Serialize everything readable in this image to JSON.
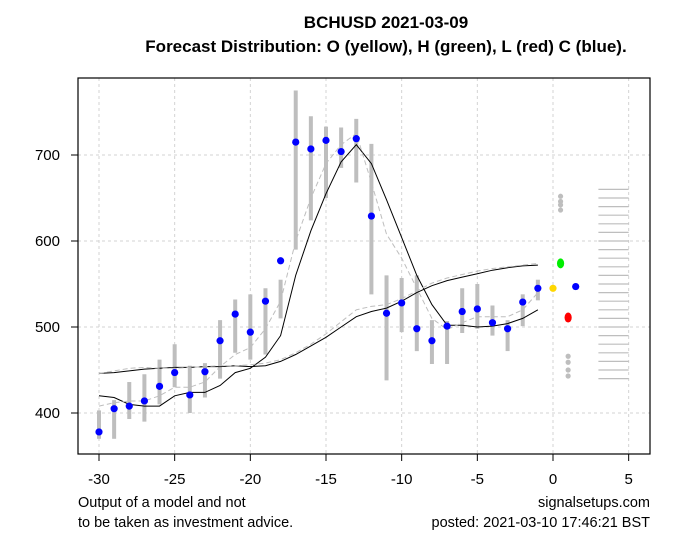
{
  "chart_data": {
    "type": "scatter",
    "title": "BCHUSD 2021-03-09",
    "subtitle": "Forecast Distribution: O (yellow), H (green), L (red) C (blue).",
    "xlabel": "",
    "ylabel": "",
    "xlim": [
      -31.5,
      6.5
    ],
    "ylim": [
      355,
      790
    ],
    "x_ticks": [
      -30,
      -25,
      -20,
      -15,
      -10,
      -5,
      0,
      5
    ],
    "x_tick_labels": [
      "-30",
      "-25",
      "-20",
      "-15",
      "-10",
      "-5",
      "0",
      "5"
    ],
    "y_ticks": [
      400,
      500,
      600,
      700
    ],
    "y_tick_labels": [
      "400",
      "500",
      "600",
      "700"
    ],
    "grid": true,
    "colors": {
      "close": "#0000ff",
      "range_bar": "#bebebe",
      "open_forecast": "#ffd700",
      "high_forecast": "#00ee00",
      "low_forecast": "#ff0000",
      "close_forecast": "#0000ff",
      "gray_marks": "#bebebe",
      "grid": "#d3d3d3",
      "line": "#000000",
      "dashed_line": "#bebebe"
    },
    "series": [
      {
        "name": "Close",
        "x": [
          -30,
          -29,
          -28,
          -27,
          -26,
          -25,
          -24,
          -23,
          -22,
          -21,
          -20,
          -19,
          -18,
          -17,
          -16,
          -15,
          -14,
          -13,
          -12,
          -11,
          -10,
          -9,
          -8,
          -7,
          -6,
          -5,
          -4,
          -3,
          -2,
          -1
        ],
        "values": [
          378,
          405,
          408,
          414,
          431,
          447,
          421,
          448,
          484,
          515,
          494,
          530,
          577,
          715,
          707,
          717,
          704,
          719,
          629,
          516,
          528,
          498,
          484,
          501,
          518,
          521,
          505,
          498,
          529,
          545
        ]
      },
      {
        "name": "Range bars (low-high)",
        "low": [
          370,
          370,
          393,
          390,
          410,
          430,
          400,
          418,
          440,
          470,
          462,
          468,
          510,
          590,
          624,
          650,
          685,
          668,
          538,
          438,
          494,
          472,
          457,
          457,
          493,
          498,
          490,
          472,
          501,
          531
        ],
        "high": [
          403,
          415,
          436,
          445,
          462,
          480,
          455,
          458,
          508,
          532,
          538,
          545,
          555,
          775,
          745,
          733,
          732,
          742,
          713,
          560,
          557,
          560,
          508,
          507,
          545,
          550,
          525,
          508,
          538,
          555
        ]
      },
      {
        "name": "Moving average (fast)",
        "x": [
          -30,
          -29,
          -28,
          -27,
          -26,
          -25,
          -24,
          -23,
          -22,
          -21,
          -20,
          -19,
          -18,
          -17,
          -16,
          -15,
          -14,
          -13,
          -12,
          -11,
          -10,
          -9,
          -8,
          -7,
          -6,
          -5,
          -4,
          -3,
          -2,
          -1
        ],
        "values": [
          420,
          418,
          410,
          408,
          408,
          420,
          424,
          424,
          432,
          447,
          452,
          465,
          490,
          560,
          612,
          655,
          692,
          712,
          690,
          648,
          604,
          560,
          526,
          502,
          502,
          500,
          501,
          504,
          510,
          520
        ]
      },
      {
        "name": "Moving average (fast, dashed)",
        "x": [
          -30,
          -29,
          -28,
          -27,
          -26,
          -25,
          -24,
          -23,
          -22,
          -21,
          -20,
          -19,
          -18,
          -17,
          -16,
          -15,
          -14,
          -13,
          -12,
          -11,
          -10,
          -9,
          -8,
          -7,
          -6,
          -5,
          -4,
          -3,
          -2,
          -1
        ],
        "values": [
          408,
          412,
          414,
          414,
          420,
          430,
          430,
          436,
          454,
          468,
          476,
          498,
          530,
          600,
          650,
          690,
          712,
          725,
          668,
          608,
          580,
          545,
          510,
          497,
          505,
          512,
          512,
          512,
          520,
          540
        ]
      },
      {
        "name": "Moving average (slow)",
        "x": [
          -30,
          -29,
          -28,
          -27,
          -26,
          -25,
          -24,
          -23,
          -22,
          -21,
          -20,
          -19,
          -18,
          -17,
          -16,
          -15,
          -14,
          -13,
          -12,
          -11,
          -10,
          -9,
          -8,
          -7,
          -6,
          -5,
          -4,
          -3,
          -2,
          -1
        ],
        "values": [
          446,
          447,
          449,
          451,
          452,
          453,
          453,
          454,
          454,
          455,
          454,
          455,
          460,
          468,
          478,
          488,
          500,
          512,
          518,
          522,
          530,
          540,
          548,
          554,
          558,
          562,
          566,
          569,
          571,
          572
        ]
      },
      {
        "name": "Moving average (slow, dashed)",
        "x": [
          -30,
          -29,
          -28,
          -27,
          -26,
          -25,
          -24,
          -23,
          -22,
          -21,
          -20,
          -19,
          -18,
          -17,
          -16,
          -15,
          -14,
          -13,
          -12,
          -11,
          -10,
          -9,
          -8,
          -7,
          -6,
          -5,
          -4,
          -3,
          -2,
          -1
        ],
        "values": [
          446,
          449,
          452,
          453,
          452,
          452,
          453,
          454,
          455,
          455,
          456,
          458,
          462,
          470,
          480,
          492,
          506,
          520,
          524,
          526,
          533,
          542,
          551,
          557,
          561,
          565,
          568,
          570,
          572,
          574
        ]
      }
    ],
    "forecast": {
      "open": {
        "x": 0.0,
        "value": 545
      },
      "high": {
        "x": 0.5,
        "value": 574
      },
      "low": {
        "x": 1.0,
        "value": 511
      },
      "close": {
        "x": 1.5,
        "value": 547
      },
      "high_upper_marks": {
        "x": 0.5,
        "values": [
          636,
          642,
          646,
          652
        ]
      },
      "low_lower_marks": {
        "x": 1.0,
        "values": [
          443,
          450,
          459,
          466
        ]
      },
      "distribution_levels": {
        "x_from": 3.0,
        "x_to": 5.0,
        "values": [
          440,
          450,
          460,
          470,
          480,
          490,
          500,
          510,
          520,
          530,
          540,
          550,
          560,
          570,
          580,
          590,
          600,
          610,
          620,
          630,
          640,
          650,
          660
        ]
      }
    }
  },
  "footer": {
    "left_line1": "Output of a model and not",
    "left_line2": "to be taken as investment advice.",
    "right_line1": "signalsetups.com",
    "right_line2": "posted: 2021-03-10 17:46:21 BST"
  }
}
